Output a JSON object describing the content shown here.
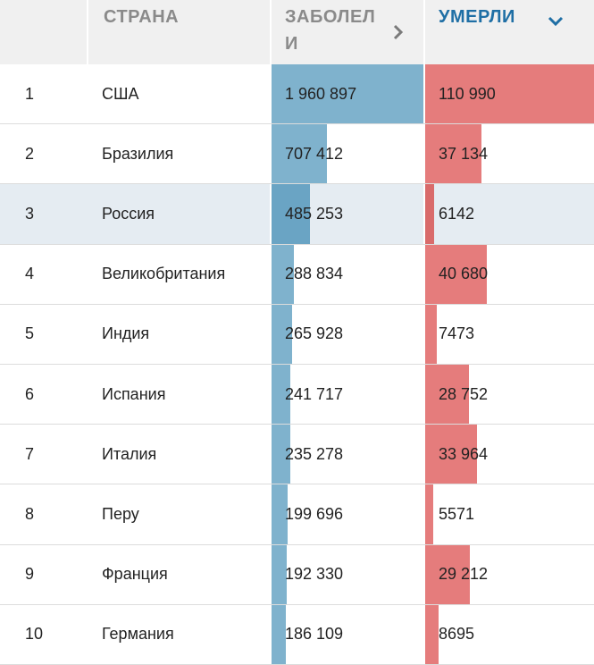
{
  "header": {
    "rank": "",
    "country": "СТРАНА",
    "cases": "ЗАБОЛЕЛИ",
    "deaths": "УМЕРЛИ",
    "cases_sort_icon": "chevron-right-icon",
    "deaths_sort_icon": "chevron-down-icon"
  },
  "colors": {
    "cases_bar": "#7fb2cd",
    "deaths_bar": "#e57c7c",
    "active_sort": "#1f6fa5",
    "highlight_row": "#e5ecf2"
  },
  "max_cases": 1960897,
  "max_deaths": 110990,
  "rows": [
    {
      "rank": "1",
      "country": "США",
      "cases": "1 960 897",
      "cases_num": 1960897,
      "deaths": "110 990",
      "deaths_num": 110990
    },
    {
      "rank": "2",
      "country": "Бразилия",
      "cases": "707 412",
      "cases_num": 707412,
      "deaths": "37 134",
      "deaths_num": 37134
    },
    {
      "rank": "3",
      "country": "Россия",
      "cases": "485 253",
      "cases_num": 485253,
      "deaths": "6142",
      "deaths_num": 6142,
      "highlight": true
    },
    {
      "rank": "4",
      "country": "Великобритания",
      "cases": "288 834",
      "cases_num": 288834,
      "deaths": "40 680",
      "deaths_num": 40680
    },
    {
      "rank": "5",
      "country": "Индия",
      "cases": "265 928",
      "cases_num": 265928,
      "deaths": "7473",
      "deaths_num": 7473
    },
    {
      "rank": "6",
      "country": "Испания",
      "cases": "241 717",
      "cases_num": 241717,
      "deaths": "28 752",
      "deaths_num": 28752
    },
    {
      "rank": "7",
      "country": "Италия",
      "cases": "235 278",
      "cases_num": 235278,
      "deaths": "33 964",
      "deaths_num": 33964
    },
    {
      "rank": "8",
      "country": "Перу",
      "cases": "199 696",
      "cases_num": 199696,
      "deaths": "5571",
      "deaths_num": 5571
    },
    {
      "rank": "9",
      "country": "Франция",
      "cases": "192 330",
      "cases_num": 192330,
      "deaths": "29 212",
      "deaths_num": 29212
    },
    {
      "rank": "10",
      "country": "Германия",
      "cases": "186 109",
      "cases_num": 186109,
      "deaths": "8695",
      "deaths_num": 8695
    }
  ]
}
